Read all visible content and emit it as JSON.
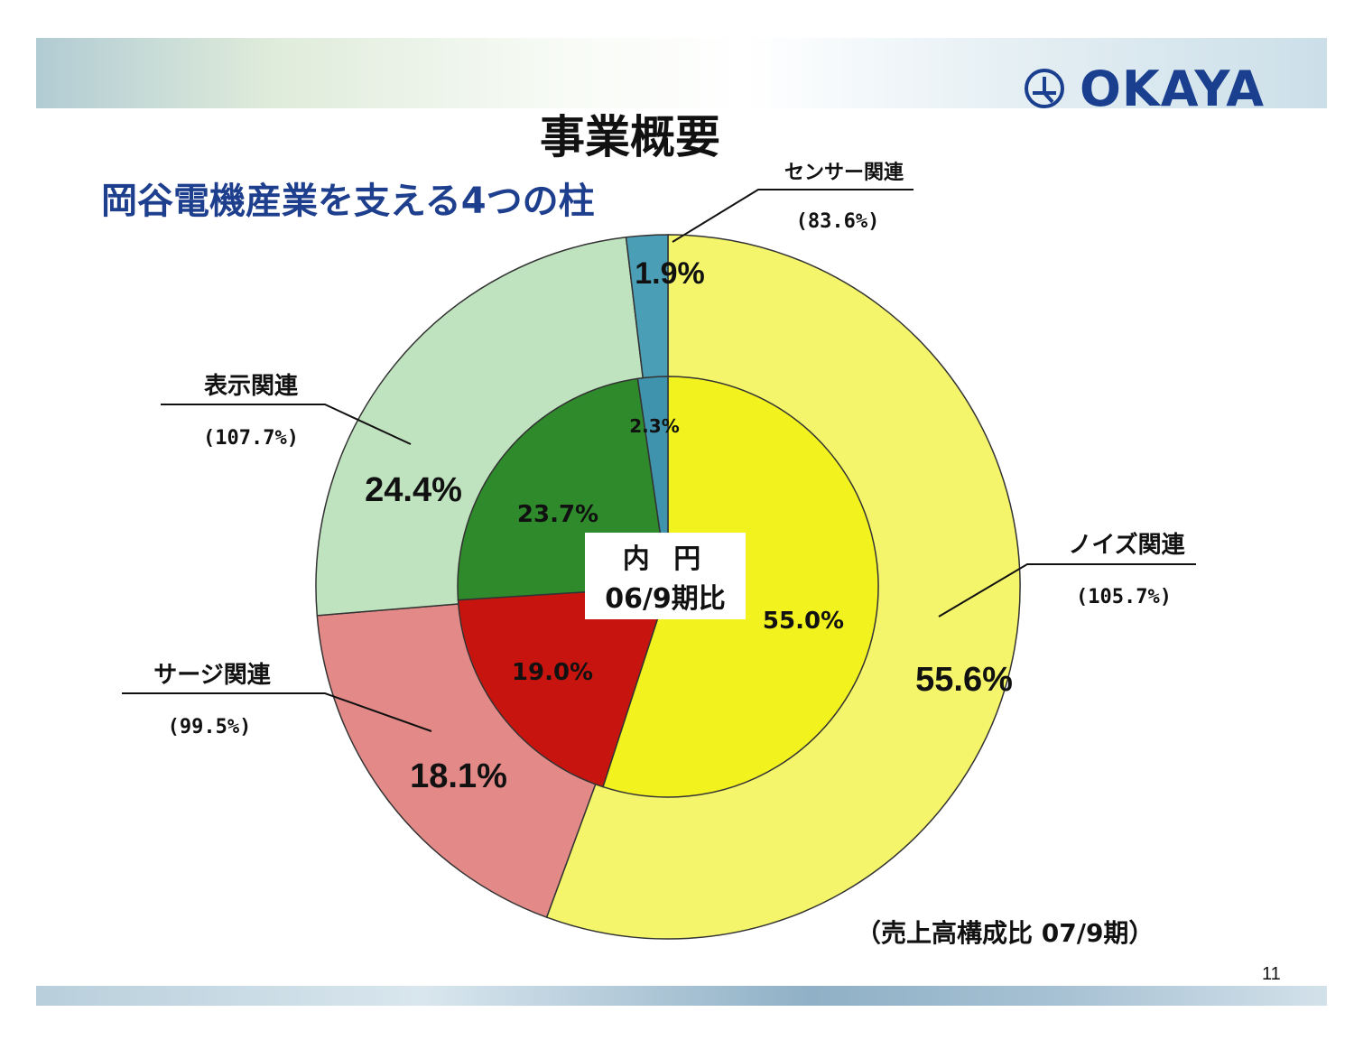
{
  "title": "事業概要",
  "subtitle": "岡谷電機産業を支える4つの柱",
  "logo": {
    "text": "OKAYA",
    "icon": "okaya-logo-icon"
  },
  "footnote": "（売上高構成比 07/9期）",
  "page_number": "11",
  "center_label": {
    "line1": "内 円",
    "line2": "06/9期比"
  },
  "chart_data": {
    "type": "pie",
    "variant": "double-donut",
    "categories": [
      "ノイズ関連",
      "サージ関連",
      "表示関連",
      "センサー関連"
    ],
    "growth_labels": [
      "(105.7%)",
      "(99.5%)",
      "(107.7%)",
      "(83.6%)"
    ],
    "series": [
      {
        "ring": "outer",
        "values": [
          55.6,
          18.1,
          24.4,
          1.9
        ],
        "labels": [
          "55.6%",
          "18.1%",
          "24.4%",
          "1.9%"
        ]
      },
      {
        "ring": "inner",
        "values": [
          55.0,
          19.0,
          23.7,
          2.3
        ],
        "labels": [
          "55.0%",
          "19.0%",
          "23.7%",
          "2.3%"
        ]
      }
    ],
    "colors": {
      "outer": [
        "#f4f56a",
        "#e38a88",
        "#bfe2bf",
        "#4a9fb6"
      ],
      "inner": [
        "#f2f21e",
        "#c8140e",
        "#2e8a2a",
        "#3f93ad"
      ]
    }
  }
}
